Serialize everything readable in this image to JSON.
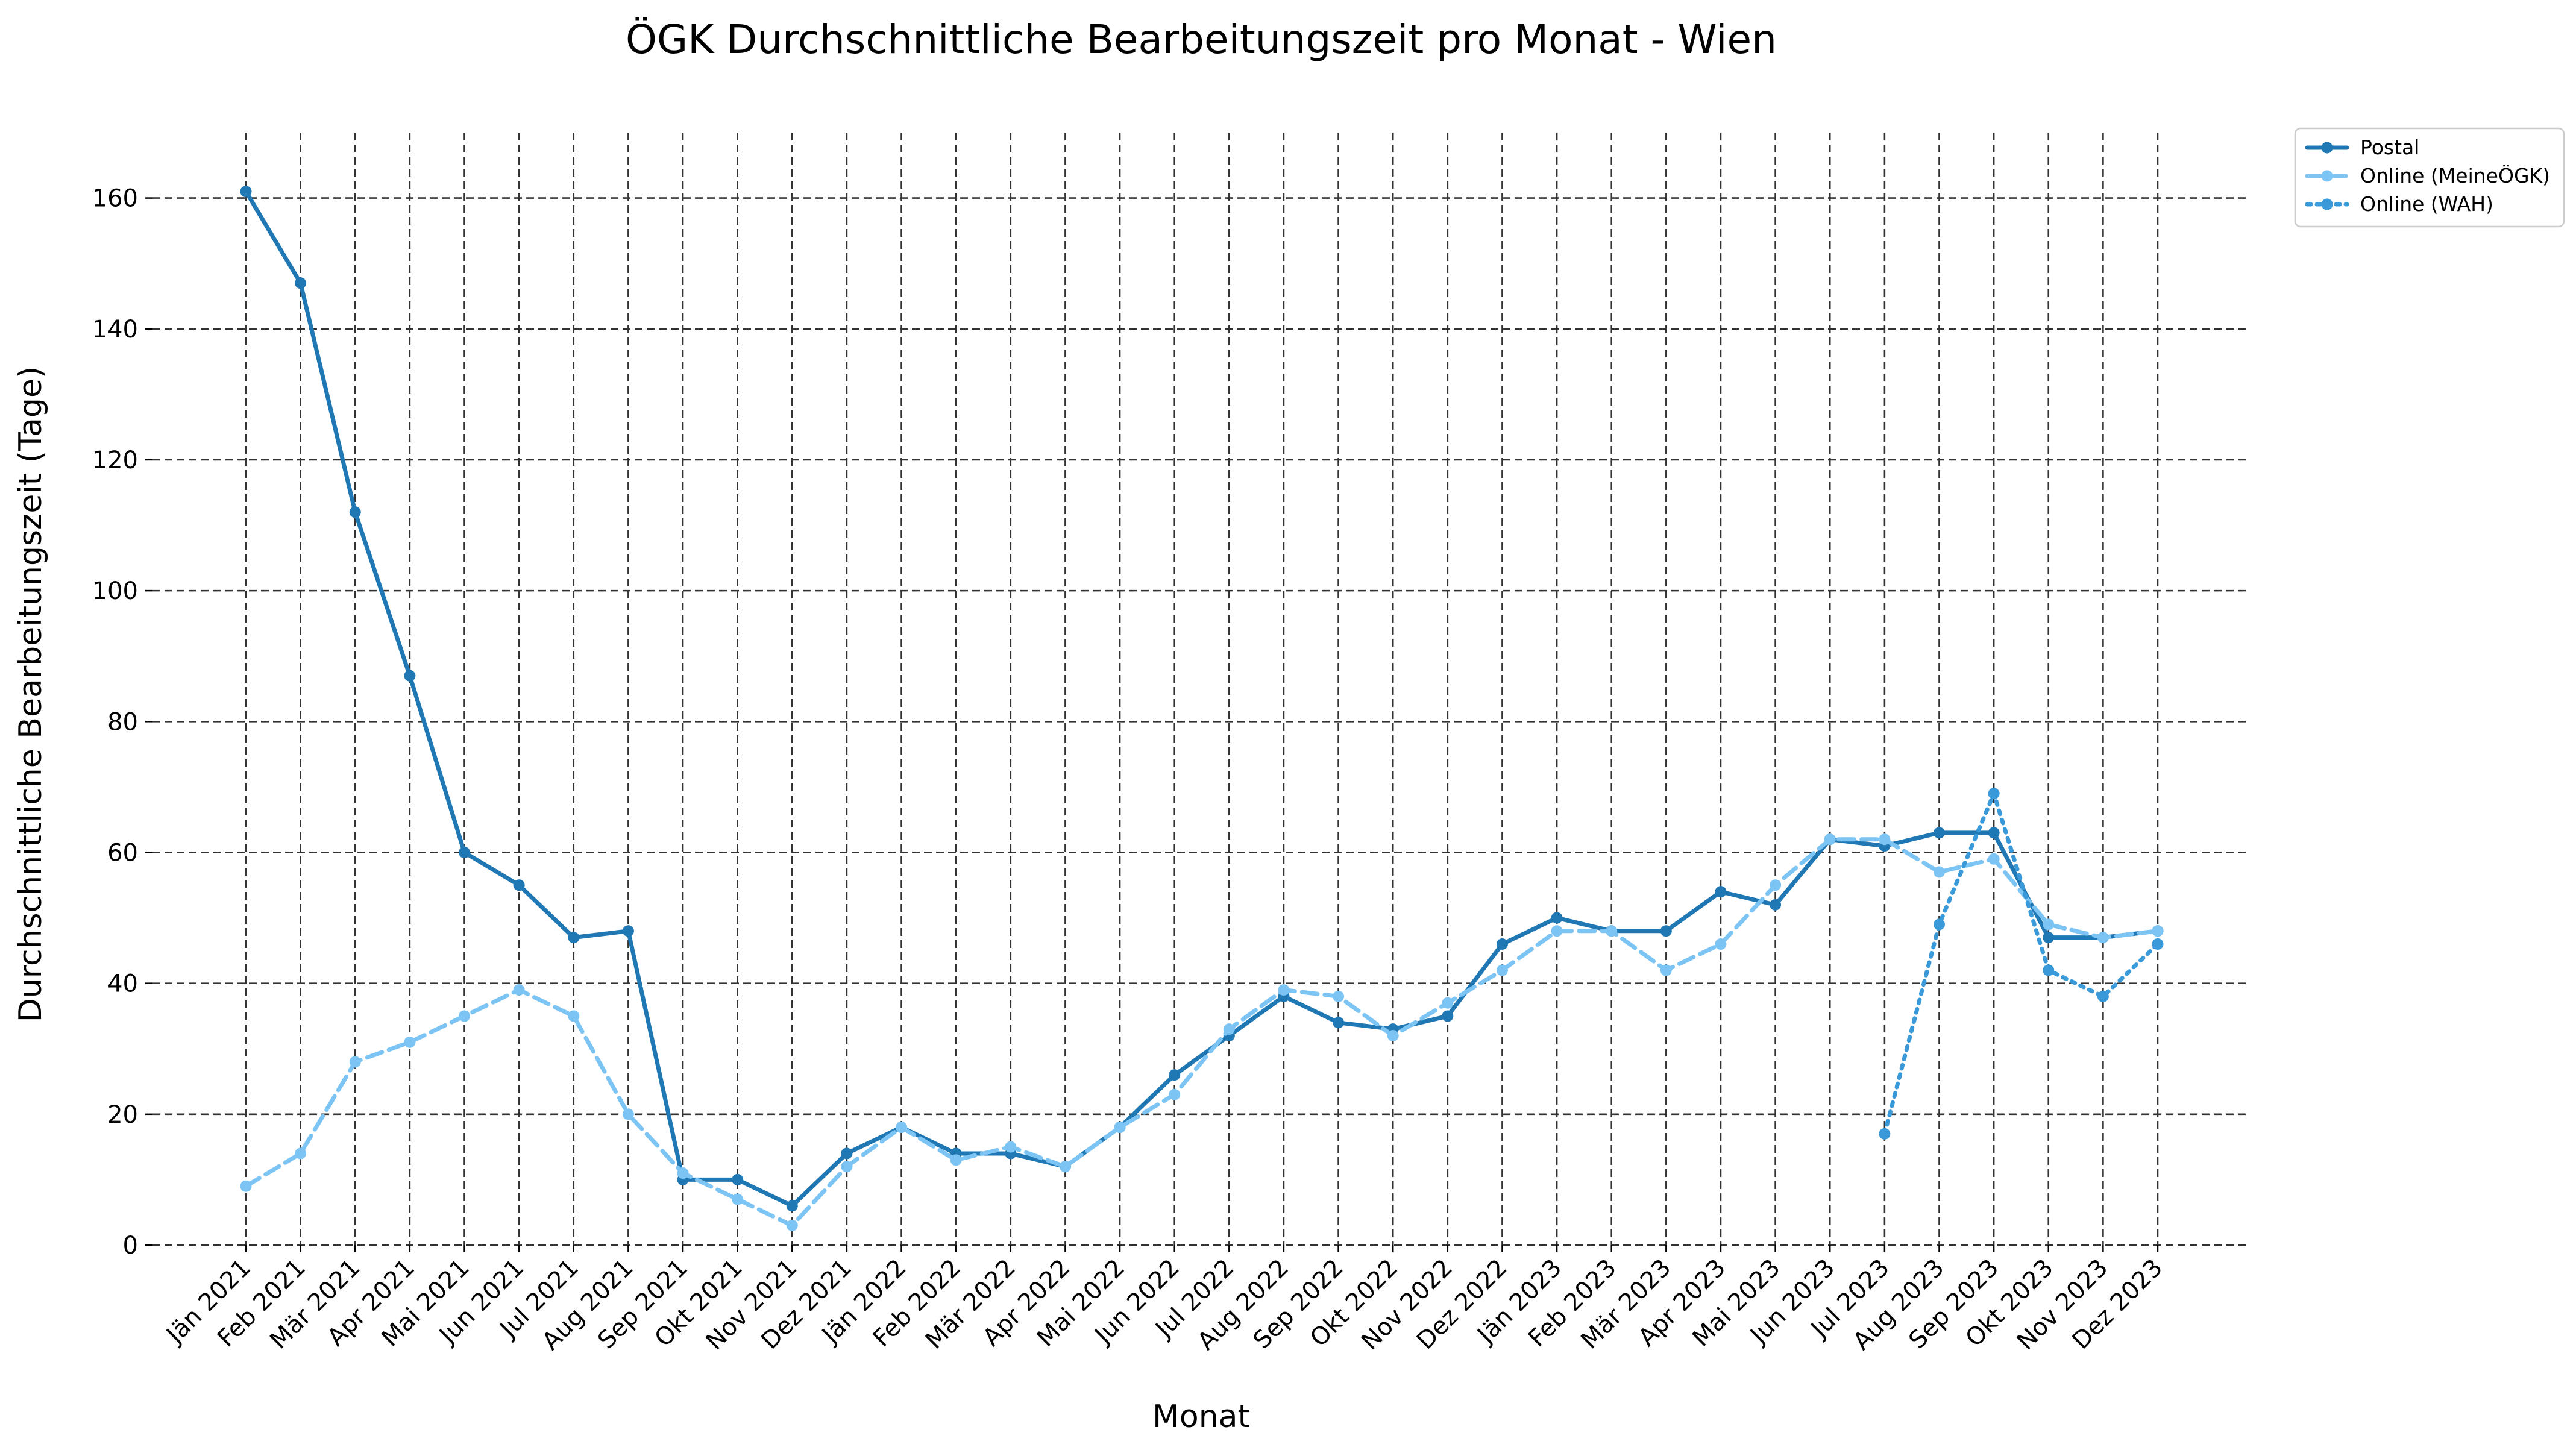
{
  "chart_data": {
    "type": "line",
    "title": "ÖGK Durchschnittliche Bearbeitungszeit pro Monat - Wien",
    "xlabel": "Monat",
    "ylabel": "Durchschnittliche Bearbeitungszeit (Tage)",
    "ylim": [
      0,
      170
    ],
    "yticks": [
      0,
      20,
      40,
      60,
      80,
      100,
      120,
      140,
      160
    ],
    "grid": true,
    "legend_position": "outside-top-right",
    "categories": [
      "Jän 2021",
      "Feb 2021",
      "Mär 2021",
      "Apr 2021",
      "Mai 2021",
      "Jun 2021",
      "Jul 2021",
      "Aug 2021",
      "Sep 2021",
      "Okt 2021",
      "Nov 2021",
      "Dez 2021",
      "Jän 2022",
      "Feb 2022",
      "Mär 2022",
      "Apr 2022",
      "Mai 2022",
      "Jun 2022",
      "Jul 2022",
      "Aug 2022",
      "Sep 2022",
      "Okt 2022",
      "Nov 2022",
      "Dez 2022",
      "Jän 2023",
      "Feb 2023",
      "Mär 2023",
      "Apr 2023",
      "Mai 2023",
      "Jun 2023",
      "Jul 2023",
      "Aug 2023",
      "Sep 2023",
      "Okt 2023",
      "Nov 2023",
      "Dez 2023"
    ],
    "series": [
      {
        "name": "Postal",
        "color": "#1f77b4",
        "dash": "solid",
        "values": [
          161,
          147,
          112,
          87,
          60,
          55,
          47,
          48,
          10,
          10,
          6,
          14,
          18,
          14,
          14,
          12,
          18,
          26,
          32,
          38,
          34,
          33,
          35,
          46,
          50,
          48,
          48,
          54,
          52,
          62,
          61,
          63,
          63,
          47,
          47,
          48
        ]
      },
      {
        "name": "Online (MeineÖGK)",
        "color": "#7cc4f4",
        "dash": "dashed",
        "values": [
          9,
          14,
          28,
          31,
          35,
          39,
          35,
          20,
          11,
          7,
          3,
          12,
          18,
          13,
          15,
          12,
          18,
          23,
          33,
          39,
          38,
          32,
          37,
          42,
          48,
          48,
          42,
          46,
          55,
          62,
          62,
          57,
          59,
          49,
          47,
          48
        ]
      },
      {
        "name": "Online (WAH)",
        "color": "#3a9ad9",
        "dash": "dotted",
        "values": [
          null,
          null,
          null,
          null,
          null,
          null,
          null,
          null,
          null,
          null,
          null,
          null,
          null,
          null,
          null,
          null,
          null,
          null,
          null,
          null,
          null,
          null,
          null,
          null,
          null,
          null,
          null,
          null,
          null,
          null,
          17,
          49,
          69,
          42,
          38,
          46
        ]
      }
    ]
  }
}
